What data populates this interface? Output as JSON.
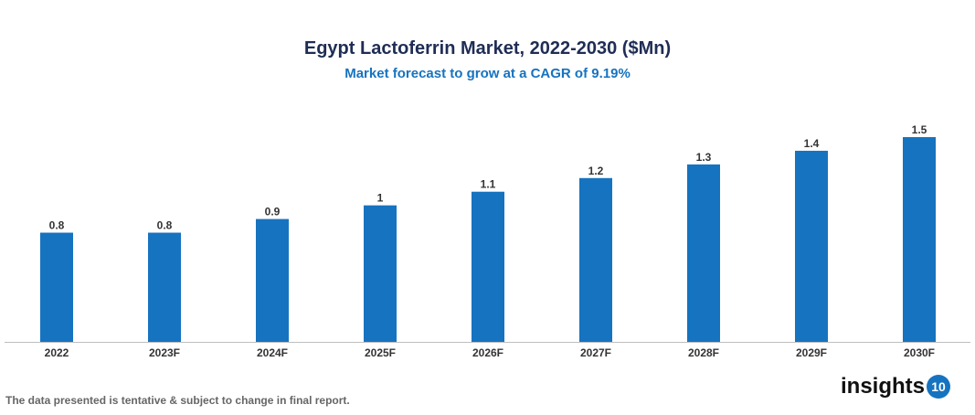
{
  "chart_data": {
    "type": "bar",
    "title": "Egypt Lactoferrin Market, 2022-2030 ($Mn)",
    "subtitle": "Market forecast to grow at a CAGR of 9.19%",
    "categories": [
      "2022",
      "2023F",
      "2024F",
      "2025F",
      "2026F",
      "2027F",
      "2028F",
      "2029F",
      "2030F"
    ],
    "values": [
      0.8,
      0.8,
      0.9,
      1,
      1.1,
      1.2,
      1.3,
      1.4,
      1.5
    ],
    "data_labels": [
      "0.8",
      "0.8",
      "0.9",
      "1",
      "1.1",
      "1.2",
      "1.3",
      "1.4",
      "1.5"
    ],
    "xlabel": "",
    "ylabel": "",
    "ylim": [
      0,
      1.5
    ],
    "grid": false,
    "bar_color": "#1673c0"
  },
  "footnote": "The data presented is tentative & subject to change in final report.",
  "logo": {
    "text": "insights",
    "badge": "10"
  }
}
